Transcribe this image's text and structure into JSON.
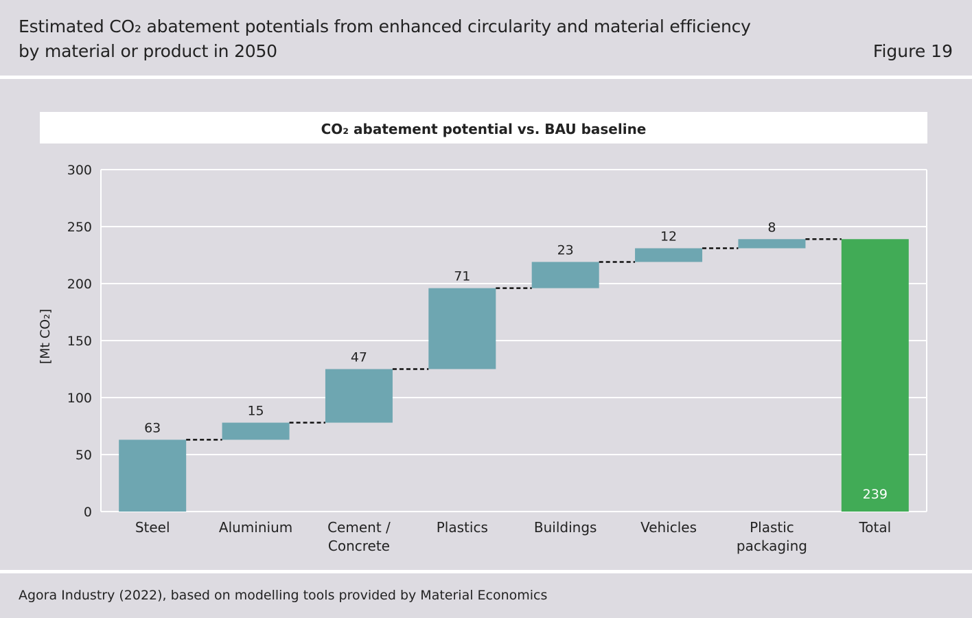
{
  "header": {
    "title_line1": "Estimated CO₂ abatement potentials from enhanced circularity and material efficiency",
    "title_line2": "by material or product in 2050",
    "figure_label": "Figure 19"
  },
  "footer": {
    "source": "Agora Industry (2022), based on modelling tools provided by Material Economics"
  },
  "colors": {
    "background": "#dddbe1",
    "step_bar": "#6ea6b1",
    "total_bar": "#41ab56",
    "gridline": "#ffffff",
    "connector": "#111111"
  },
  "chart_data": {
    "type": "bar",
    "subtype": "waterfall",
    "title": "CO₂ abatement potential vs. BAU baseline",
    "ylabel": "[Mt CO₂]",
    "xlabel": "",
    "ylim": [
      0,
      300
    ],
    "yticks": [
      0,
      50,
      100,
      150,
      200,
      250,
      300
    ],
    "grid": true,
    "categories": [
      [
        "Steel"
      ],
      [
        "Aluminium"
      ],
      [
        "Cement /",
        "Concrete"
      ],
      [
        "Plastics"
      ],
      [
        "Buildings"
      ],
      [
        "Vehicles"
      ],
      [
        "Plastic",
        "packaging"
      ],
      [
        "Total"
      ]
    ],
    "values": [
      63,
      15,
      47,
      71,
      23,
      12,
      8,
      239
    ],
    "value_labels": [
      "63",
      "15",
      "47",
      "71",
      "23",
      "12",
      "8",
      "239"
    ],
    "total_index": 7
  }
}
